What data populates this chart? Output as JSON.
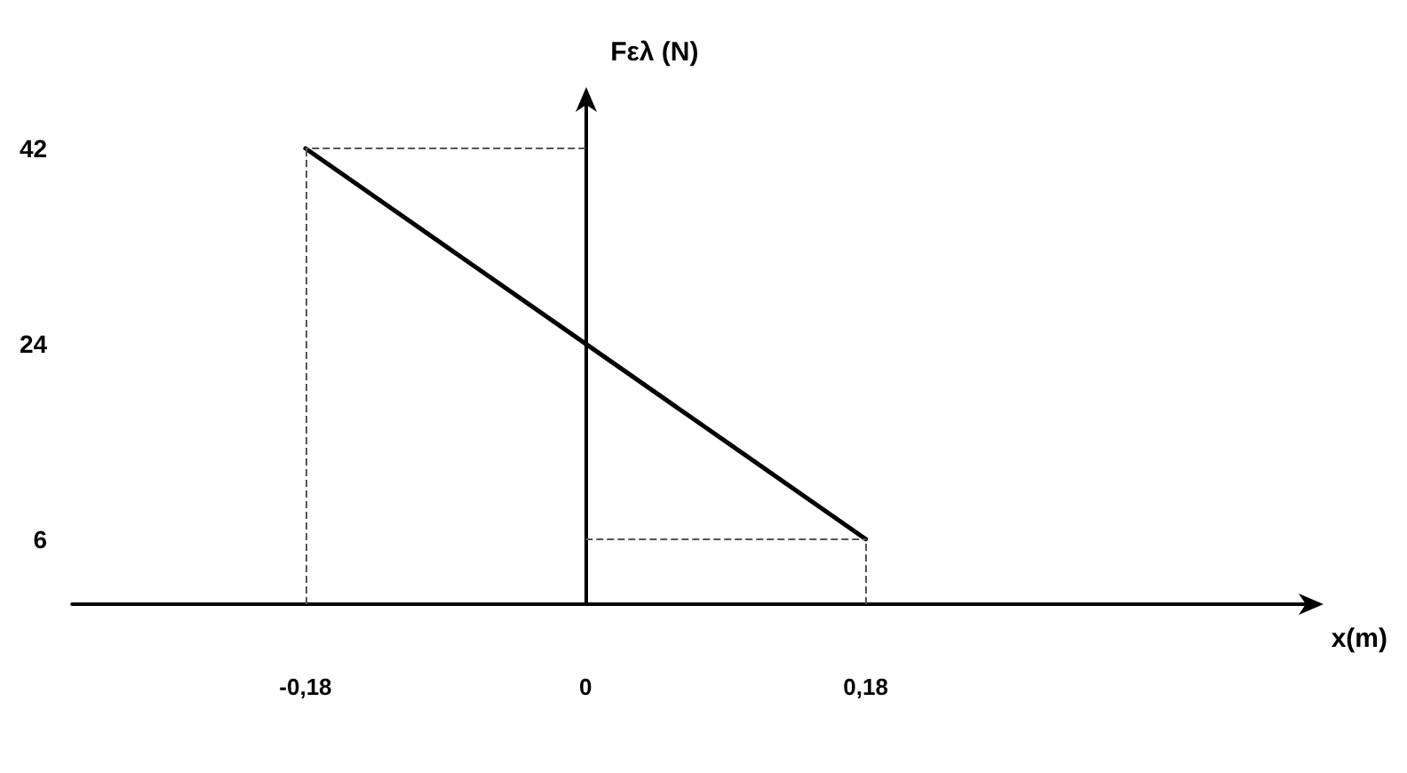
{
  "chart_data": {
    "type": "line",
    "xlabel": "x(m)",
    "ylabel": "Fελ (N)",
    "x": [
      -0.18,
      0,
      0.18
    ],
    "series": [
      {
        "color": "#000000",
        "values": [
          42,
          24,
          6
        ]
      }
    ],
    "xlim": [
      -0.33,
      0.47
    ],
    "xticks": [
      {
        "value": -0.18,
        "label": "-0,18"
      },
      0,
      {
        "value": 0.18,
        "label": "0,18"
      }
    ],
    "ylim": [
      0,
      47
    ],
    "yticks": [
      6,
      24,
      42
    ],
    "ref_lines": [
      {
        "axis": "x",
        "value": -0.18,
        "color": "#555555",
        "line_style": "dashed"
      },
      {
        "axis": "y",
        "value": 42,
        "color": "#555555",
        "line_style": "dashed"
      },
      {
        "axis": "x",
        "value": 0.18,
        "color": "#555555",
        "line_style": "dashed"
      },
      {
        "axis": "y",
        "value": 6,
        "color": "#555555",
        "line_style": "dashed"
      }
    ],
    "grid": false,
    "marker": "none",
    "line_style": "solid"
  }
}
